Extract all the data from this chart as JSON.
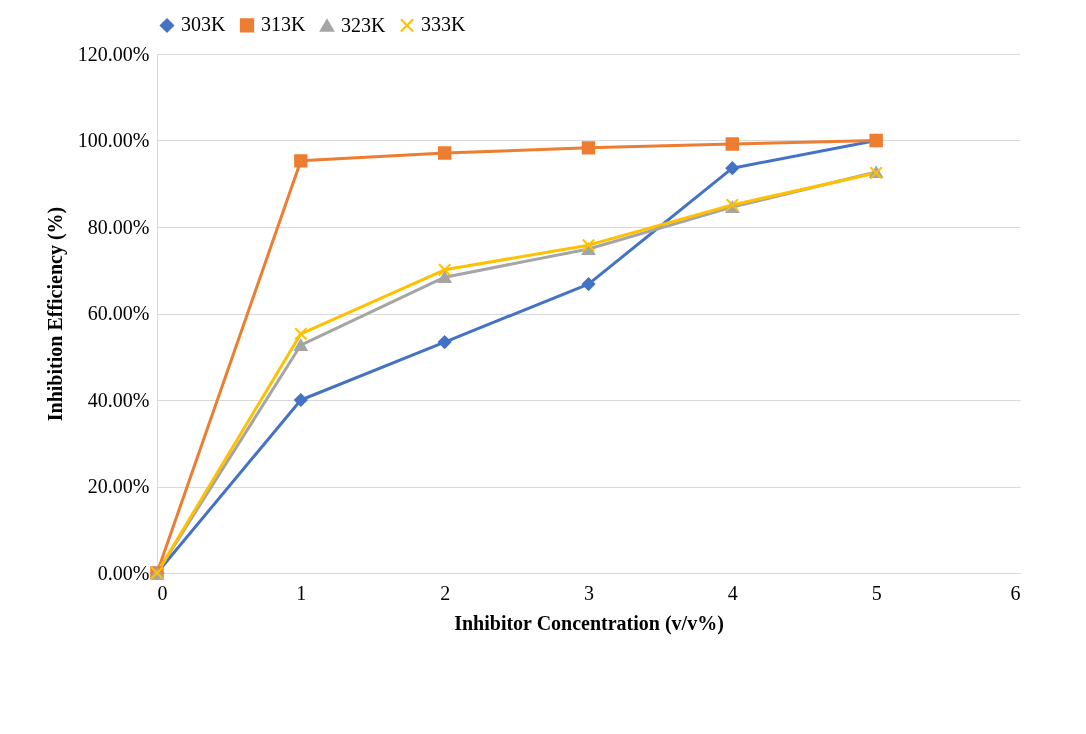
{
  "chart_data": {
    "type": "line",
    "xlabel": "Inhibitor Concentration (v/v%)",
    "ylabel": "Inhibition Efficiency (%)",
    "x": [
      0,
      1,
      2,
      3,
      4,
      5
    ],
    "series": [
      {
        "name": "303K",
        "color": "#4472c4",
        "marker": "diamond",
        "values": [
          0,
          40.0,
          53.4,
          66.8,
          93.6,
          100
        ]
      },
      {
        "name": "313K",
        "color": "#ed7d31",
        "marker": "square",
        "values": [
          0,
          95.3,
          97.1,
          98.3,
          99.2,
          100
        ]
      },
      {
        "name": "323K",
        "color": "#a5a5a5",
        "marker": "triangle",
        "values": [
          0,
          52.7,
          68.4,
          74.9,
          84.6,
          92.7
        ]
      },
      {
        "name": "333K",
        "color": "#ffc000",
        "marker": "cross",
        "values": [
          0,
          55.3,
          70.1,
          75.8,
          85.1,
          92.5
        ]
      }
    ],
    "xlim": [
      0,
      6
    ],
    "xticks": [
      0,
      1,
      2,
      3,
      4,
      5,
      6
    ],
    "ylim": [
      0,
      120
    ],
    "yticks": [
      {
        "value": 0,
        "label": "0.00%"
      },
      {
        "value": 20,
        "label": "20.00%"
      },
      {
        "value": 40,
        "label": "40.00%"
      },
      {
        "value": 60,
        "label": "60.00%"
      },
      {
        "value": 80,
        "label": "80.00%"
      },
      {
        "value": 100,
        "label": "100.00%"
      },
      {
        "value": 120,
        "label": "120.00%"
      }
    ],
    "grid": "y",
    "legend": "top",
    "line_style": "solid"
  }
}
